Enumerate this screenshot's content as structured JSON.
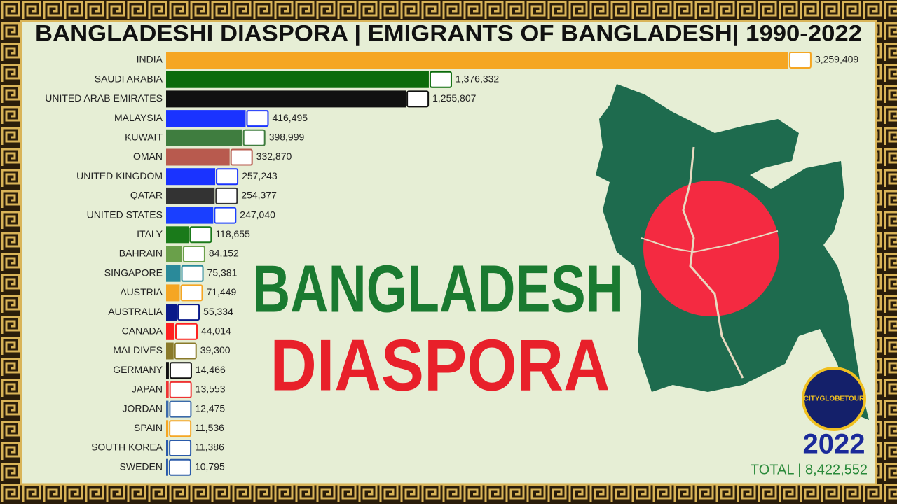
{
  "chart_data": {
    "type": "bar",
    "orientation": "horizontal",
    "title": "BANGLADESHI DIASPORA | EMIGRANTS OF BANGLADESH| 1990-2022",
    "categories": [
      "INDIA",
      "SAUDI ARABIA",
      "UNITED ARAB EMIRATES",
      "MALAYSIA",
      "KUWAIT",
      "OMAN",
      "UNITED KINGDOM",
      "QATAR",
      "UNITED STATES",
      "ITALY",
      "BAHRAIN",
      "SINGAPORE",
      "AUSTRIA",
      "AUSTRALIA",
      "CANADA",
      "MALDIVES",
      "GERMANY",
      "JAPAN",
      "JORDAN",
      "SPAIN",
      "SOUTH KOREA",
      "SWEDEN"
    ],
    "values": [
      3259409,
      1376332,
      1255807,
      416495,
      398999,
      332870,
      257243,
      254377,
      247040,
      118655,
      84152,
      75381,
      71449,
      55334,
      44014,
      39300,
      14466,
      13553,
      12475,
      11536,
      11386,
      10795
    ],
    "value_labels": [
      "3,259,409",
      "1,376,332",
      "1,255,807",
      "416,495",
      "398,999",
      "332,870",
      "257,243",
      "254,377",
      "247,040",
      "118,655",
      "84,152",
      "75,381",
      "71,449",
      "55,334",
      "44,014",
      "39,300",
      "14,466",
      "13,553",
      "12,475",
      "11,536",
      "11,386",
      "10,795"
    ],
    "colors": [
      "#f5a623",
      "#0b6b0b",
      "#111111",
      "#1a33ff",
      "#3f7d3f",
      "#b85a4e",
      "#1a33ff",
      "#333333",
      "#1a3fff",
      "#1a7a1a",
      "#6aa04a",
      "#2a8a9a",
      "#f5a623",
      "#0a1a8a",
      "#ff2020",
      "#8a7a2a",
      "#111111",
      "#ee3333",
      "#3a6aaa",
      "#f5a623",
      "#2a5aaa",
      "#2a5aaa"
    ],
    "xlim": [
      0,
      3300000
    ]
  },
  "overlay": {
    "headline": "BANGLADESH",
    "subheadline": "DIASPORA",
    "year": "2022",
    "total": "TOTAL | 8,422,552",
    "logo": "CITYGLOBETOUR"
  }
}
